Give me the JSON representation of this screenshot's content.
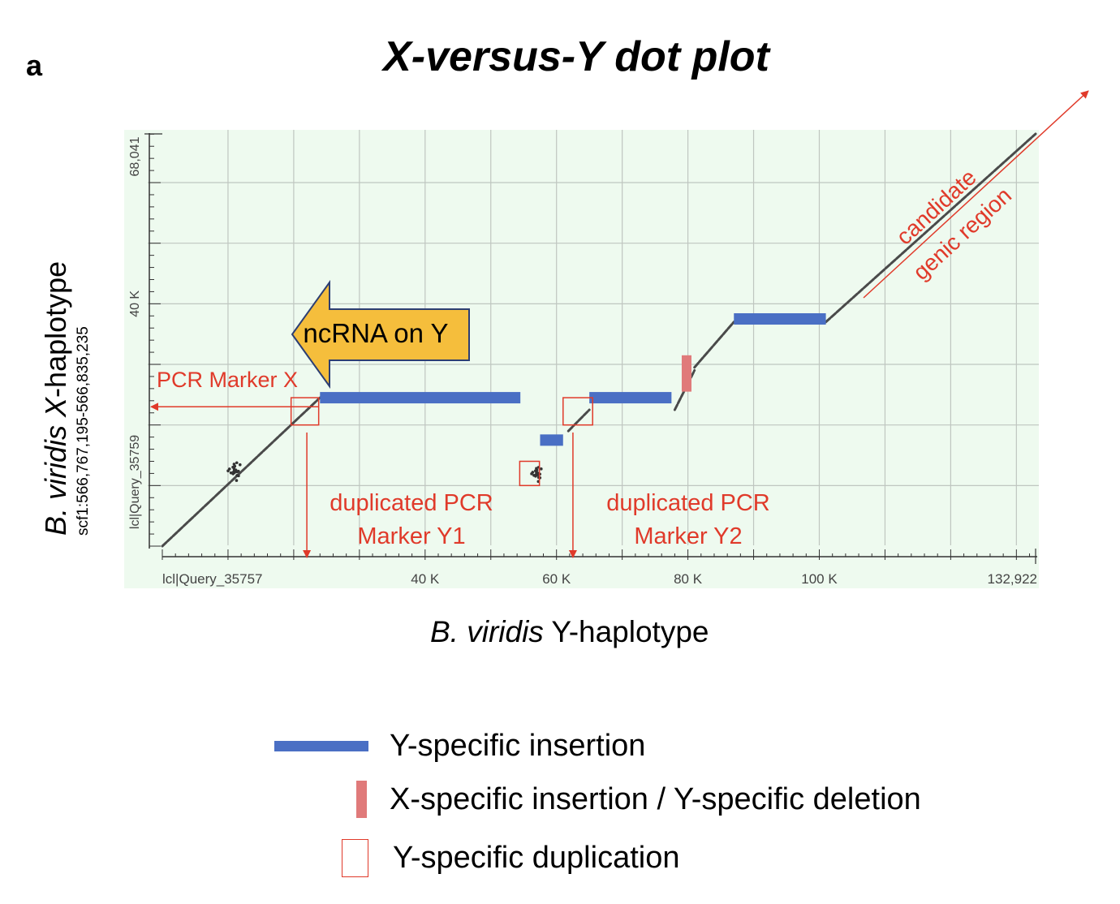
{
  "panel_letter": "a",
  "title": "X-versus-Y dot plot",
  "y_axis": {
    "label_species": "B. viridis",
    "label_haplo_letter": "X",
    "label_suffix": "-haplotype",
    "sub_label": "scf1:566,767,195-566,835,235",
    "query_label": "lcl|Query_35759"
  },
  "x_axis": {
    "label_species": "B. viridis",
    "label_suffix": " Y-haplotype",
    "query_label": "lcl|Query_35757"
  },
  "colors": {
    "plot_bg": "#eefaef",
    "grid": "#bfc6c0",
    "dots": "#4a4a4a",
    "y_insertion": "#4a6fc4",
    "x_insertion": "#e07a7a",
    "annotation": "#e03a2a",
    "arrow_fill": "#f5be3c",
    "arrow_stroke": "#2c3e73"
  },
  "annotations": {
    "arrow_label": "ncRNA on Y",
    "pcr_x": "PCR Marker X",
    "dup_y1_line1": "duplicated PCR",
    "dup_y1_line2": "Marker Y1",
    "dup_y2_line1": "duplicated PCR",
    "dup_y2_line2": "Marker Y2",
    "candidate_line1": "candidate",
    "candidate_line2": "genic region"
  },
  "legend": {
    "y_insertion": "Y-specific insertion",
    "x_insertion": "X-specific insertion / Y-specific deletion",
    "y_duplication": "Y-specific duplication"
  },
  "chart_data": {
    "type": "scatter",
    "title": "X-versus-Y dot plot",
    "xlabel": "B. viridis Y-haplotype",
    "ylabel": "B. viridis X-haplotype",
    "xlim": [
      0,
      132922
    ],
    "ylim": [
      0,
      68041
    ],
    "x_ticks": [
      {
        "value": 40000,
        "label": "40 K"
      },
      {
        "value": 60000,
        "label": "60 K"
      },
      {
        "value": 80000,
        "label": "80 K"
      },
      {
        "value": 100000,
        "label": "100 K"
      },
      {
        "value": 132922,
        "label": "132,922"
      }
    ],
    "y_ticks": [
      {
        "value": 40000,
        "label": "40 K"
      },
      {
        "value": 68041,
        "label": "68,041"
      }
    ],
    "alignment_segments": [
      {
        "x": [
          0,
          24000
        ],
        "y": [
          0,
          24500
        ]
      },
      {
        "x": [
          61800,
          65000
        ],
        "y": [
          19000,
          22500
        ]
      },
      {
        "x": [
          78000,
          81000
        ],
        "y": [
          22500,
          29000
        ]
      },
      {
        "x": [
          81000,
          87000
        ],
        "y": [
          29500,
          37000
        ]
      },
      {
        "x": [
          101000,
          132922
        ],
        "y": [
          37000,
          68041
        ]
      }
    ],
    "y_specific_insertions": [
      {
        "x": [
          24000,
          54500
        ],
        "y": 24500
      },
      {
        "x": [
          57500,
          61000
        ],
        "y": 17500
      },
      {
        "x": [
          65000,
          77500
        ],
        "y": 24500
      },
      {
        "x": [
          87000,
          101000
        ],
        "y": 37500
      }
    ],
    "x_specific_insertions": [
      {
        "x": 79800,
        "y": [
          25500,
          31500
        ]
      }
    ],
    "y_specific_duplications": [
      {
        "x": [
          19600,
          23800
        ],
        "y": [
          20000,
          24500
        ]
      },
      {
        "x": [
          61000,
          65500
        ],
        "y": [
          20000,
          24500
        ]
      },
      {
        "x": [
          54400,
          57400
        ],
        "y": [
          10000,
          14000
        ]
      }
    ],
    "markers": [
      {
        "label": "PCR Marker X",
        "y": 23000
      },
      {
        "label": "duplicated PCR Marker Y1",
        "x": 22000
      },
      {
        "label": "duplicated PCR Marker Y2",
        "x": 62500
      }
    ]
  }
}
